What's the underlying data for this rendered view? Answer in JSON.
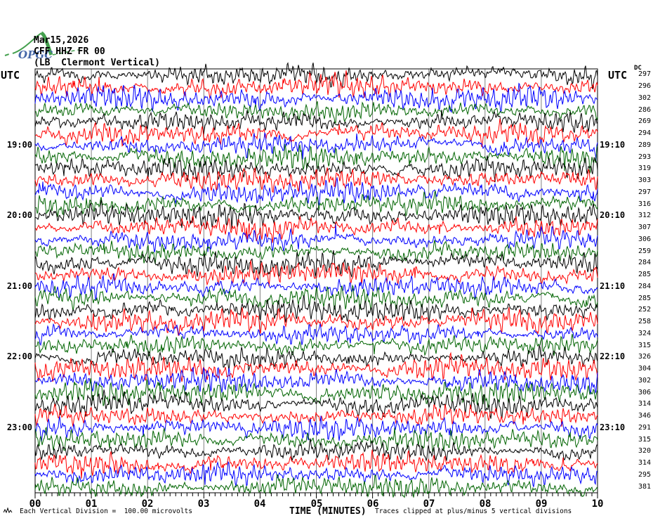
{
  "logo": {
    "text": "OPGC",
    "curve_color": "#44a04e",
    "text_color": "#4668a8"
  },
  "header": {
    "date": "Mar15,2026",
    "station": "CFF HHZ FR 00",
    "location": "(LB  Clermont Vertical)"
  },
  "left_axis": {
    "label": "UTC"
  },
  "right_axis": {
    "label": "UTC",
    "dc_header": "DC"
  },
  "x_axis": {
    "tick_labels": [
      "00",
      "01",
      "02",
      "03",
      "04",
      "05",
      "06",
      "07",
      "08",
      "09",
      "10"
    ],
    "label": "TIME (MINUTES)"
  },
  "footer": {
    "scale_note": "Each Vertical Division =  100.00 microvolts",
    "clip_note": "Traces clipped at plus/minus 5 vertical divisions"
  },
  "colors": {
    "trace_cycle": [
      "#000000",
      "#ff0000",
      "#0000ff",
      "#006400"
    ],
    "grid": "#808080",
    "frame": "#000000"
  },
  "plot": {
    "rows": 36,
    "hour_rows": [
      {
        "row": 7,
        "left": "19:00",
        "right": "19:10"
      },
      {
        "row": 13,
        "left": "20:00",
        "right": "20:10"
      },
      {
        "row": 19,
        "left": "21:00",
        "right": "21:10"
      },
      {
        "row": 25,
        "left": "22:00",
        "right": "22:10"
      },
      {
        "row": 31,
        "left": "23:00",
        "right": "23:10"
      }
    ],
    "dc_values": [
      297,
      296,
      302,
      286,
      269,
      294,
      289,
      293,
      319,
      303,
      297,
      316,
      312,
      307,
      306,
      259,
      284,
      285,
      284,
      285,
      252,
      258,
      324,
      315,
      326,
      304,
      302,
      306,
      314,
      346,
      291,
      315,
      320,
      314,
      295,
      381
    ]
  },
  "chart_data": {
    "type": "line",
    "title": "CFF HHZ FR 00 (LB  Clermont Vertical) Mar15,2026 — webicorder / helicorder record",
    "xlabel": "TIME (MINUTES)",
    "x_range": [
      0,
      10
    ],
    "x_tick_labels": [
      "00",
      "01",
      "02",
      "03",
      "04",
      "05",
      "06",
      "07",
      "08",
      "09",
      "10"
    ],
    "grid": "vertical gray line each minute",
    "n_traces": 36,
    "minutes_per_trace": 10,
    "vertical_division_microvolts": 100.0,
    "clip_divisions": 5,
    "content_note": "continuous seismic background noise; individual samples not resolvable at screen scale",
    "series": [
      {
        "row": 1,
        "color": "black",
        "dc": 297
      },
      {
        "row": 2,
        "color": "red",
        "dc": 296
      },
      {
        "row": 3,
        "color": "blue",
        "dc": 302
      },
      {
        "row": 4,
        "color": "green",
        "dc": 286
      },
      {
        "row": 5,
        "color": "black",
        "dc": 269
      },
      {
        "row": 6,
        "color": "red",
        "dc": 294
      },
      {
        "row": 7,
        "color": "blue",
        "dc": 289,
        "utc_left": "19:00",
        "utc_right": "19:10"
      },
      {
        "row": 8,
        "color": "green",
        "dc": 293
      },
      {
        "row": 9,
        "color": "black",
        "dc": 319
      },
      {
        "row": 10,
        "color": "red",
        "dc": 303
      },
      {
        "row": 11,
        "color": "blue",
        "dc": 297
      },
      {
        "row": 12,
        "color": "green",
        "dc": 316
      },
      {
        "row": 13,
        "color": "black",
        "dc": 312,
        "utc_left": "20:00",
        "utc_right": "20:10"
      },
      {
        "row": 14,
        "color": "red",
        "dc": 307
      },
      {
        "row": 15,
        "color": "blue",
        "dc": 306
      },
      {
        "row": 16,
        "color": "green",
        "dc": 259
      },
      {
        "row": 17,
        "color": "black",
        "dc": 284
      },
      {
        "row": 18,
        "color": "red",
        "dc": 285
      },
      {
        "row": 19,
        "color": "blue",
        "dc": 284,
        "utc_left": "21:00",
        "utc_right": "21:10"
      },
      {
        "row": 20,
        "color": "green",
        "dc": 285
      },
      {
        "row": 21,
        "color": "black",
        "dc": 252
      },
      {
        "row": 22,
        "color": "red",
        "dc": 258
      },
      {
        "row": 23,
        "color": "blue",
        "dc": 324
      },
      {
        "row": 24,
        "color": "green",
        "dc": 315
      },
      {
        "row": 25,
        "color": "black",
        "dc": 326,
        "utc_left": "22:00",
        "utc_right": "22:10"
      },
      {
        "row": 26,
        "color": "red",
        "dc": 304
      },
      {
        "row": 27,
        "color": "blue",
        "dc": 302
      },
      {
        "row": 28,
        "color": "green",
        "dc": 306
      },
      {
        "row": 29,
        "color": "black",
        "dc": 314
      },
      {
        "row": 30,
        "color": "red",
        "dc": 346
      },
      {
        "row": 31,
        "color": "blue",
        "dc": 291,
        "utc_left": "23:00",
        "utc_right": "23:10"
      },
      {
        "row": 32,
        "color": "green",
        "dc": 315
      },
      {
        "row": 33,
        "color": "black",
        "dc": 320
      },
      {
        "row": 34,
        "color": "red",
        "dc": 314
      },
      {
        "row": 35,
        "color": "blue",
        "dc": 295
      },
      {
        "row": 36,
        "color": "green",
        "dc": 381
      }
    ]
  }
}
